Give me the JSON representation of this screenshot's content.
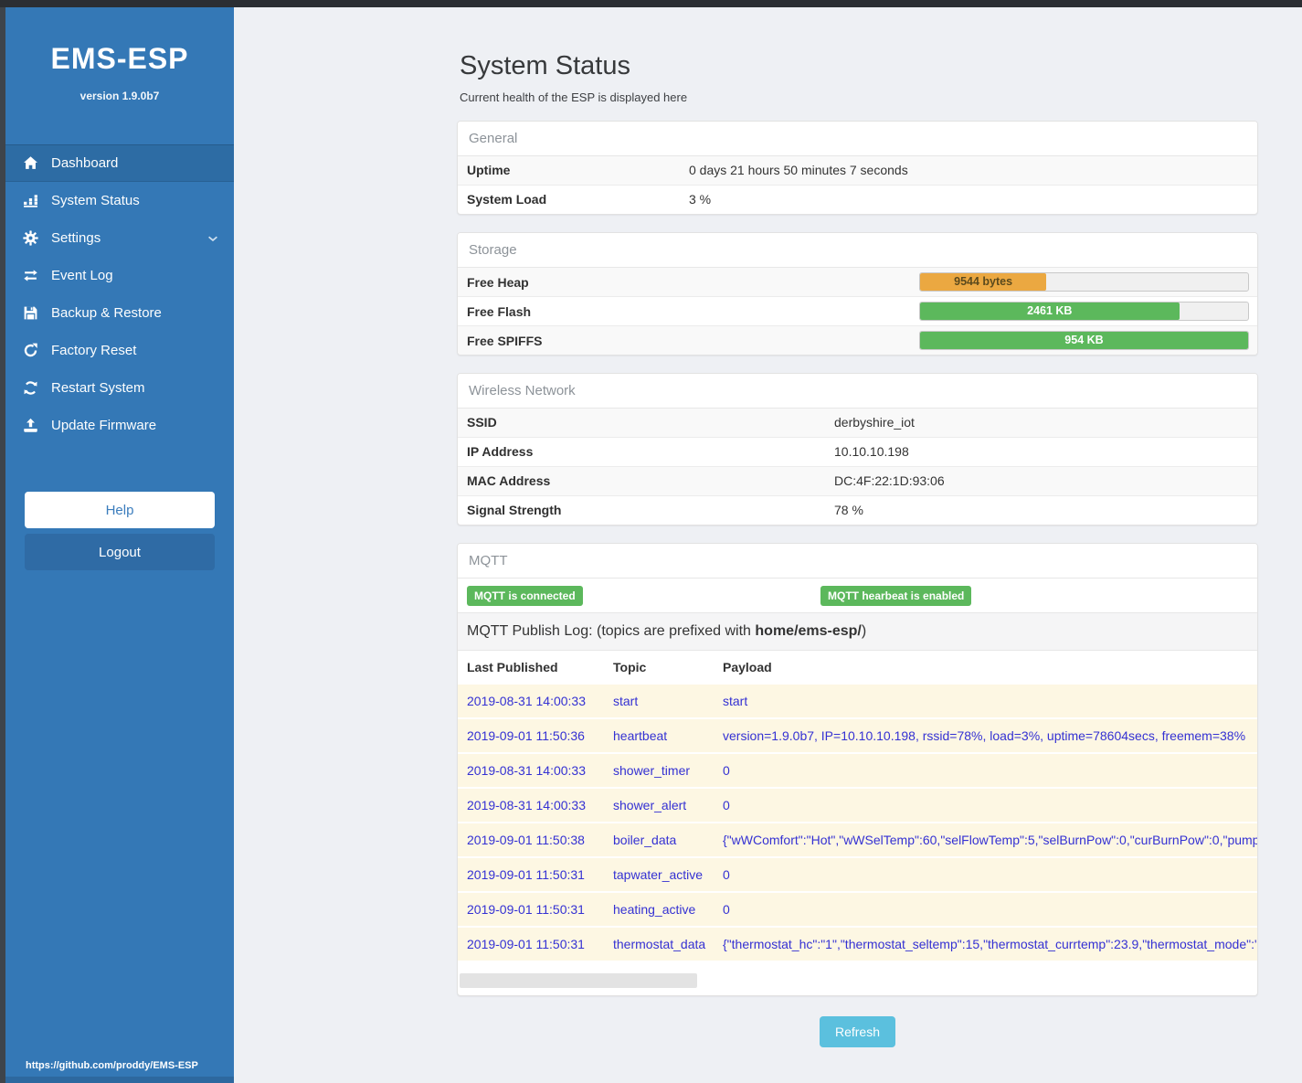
{
  "colors": {
    "sidebar_blue": "#3478b6",
    "active_item_blue": "#2d6ca4",
    "logout_blue": "#2f6ba5",
    "badge_green": "#5cb85c",
    "heap_orange": "#eba841",
    "flash_green": "#5cb85c",
    "refresh_blue": "#5bc0de",
    "log_row_bg": "#fdf7e3",
    "log_text_blue": "#3431d3"
  },
  "sidebar": {
    "title": "EMS-ESP",
    "version": "version 1.9.0b7",
    "items": [
      {
        "id": "dashboard",
        "label": "Dashboard",
        "icon": "home",
        "active": true
      },
      {
        "id": "system-status",
        "label": "System Status",
        "icon": "chart",
        "active": false
      },
      {
        "id": "settings",
        "label": "Settings",
        "icon": "gear",
        "active": false,
        "chevron": true
      },
      {
        "id": "event-log",
        "label": "Event Log",
        "icon": "exchange",
        "active": false
      },
      {
        "id": "backup-restore",
        "label": "Backup & Restore",
        "icon": "save",
        "active": false
      },
      {
        "id": "factory-reset",
        "label": "Factory Reset",
        "icon": "rotate",
        "active": false
      },
      {
        "id": "restart-system",
        "label": "Restart System",
        "icon": "sync",
        "active": false
      },
      {
        "id": "update-firmware",
        "label": "Update Firmware",
        "icon": "upload",
        "active": false
      }
    ],
    "help_label": "Help",
    "logout_label": "Logout",
    "footer_link": "https://github.com/proddy/EMS-ESP"
  },
  "page": {
    "title": "System Status",
    "subtitle": "Current health of the ESP is displayed here",
    "refresh_label": "Refresh"
  },
  "general": {
    "header": "General",
    "rows": [
      {
        "label": "Uptime",
        "value": "0 days 21 hours 50 minutes 7 seconds"
      },
      {
        "label": "System Load",
        "value": "3 %"
      }
    ]
  },
  "storage": {
    "header": "Storage",
    "rows": [
      {
        "label": "Free Heap",
        "value": "9544 bytes",
        "percent": 38.5,
        "color": "#eba841",
        "text_color": "#5b4a1d"
      },
      {
        "label": "Free Flash",
        "value": "2461 KB",
        "percent": 79,
        "color": "#5cb85c",
        "text_color": "#ffffff"
      },
      {
        "label": "Free SPIFFS",
        "value": "954 KB",
        "percent": 100,
        "color": "#5cb85c",
        "text_color": "#ffffff"
      }
    ]
  },
  "wireless": {
    "header": "Wireless Network",
    "rows": [
      {
        "label": "SSID",
        "value": "derbyshire_iot"
      },
      {
        "label": "IP Address",
        "value": "10.10.10.198"
      },
      {
        "label": "MAC Address",
        "value": "DC:4F:22:1D:93:06"
      },
      {
        "label": "Signal Strength",
        "value": "78 %"
      }
    ]
  },
  "mqtt": {
    "header": "MQTT",
    "badges": [
      "MQTT is connected",
      "MQTT hearbeat is enabled"
    ],
    "publish_log": {
      "prefix": "MQTT Publish Log: (topics are prefixed with ",
      "bold": "home/ems-esp/",
      "suffix": ")"
    },
    "table": {
      "headers": [
        "Last Published",
        "Topic",
        "Payload"
      ],
      "rows": [
        {
          "published": "2019-08-31 14:00:33",
          "topic": "start",
          "payload": "start"
        },
        {
          "published": "2019-09-01 11:50:36",
          "topic": "heartbeat",
          "payload": "version=1.9.0b7, IP=10.10.10.198, rssid=78%, load=3%, uptime=78604secs, freemem=38%"
        },
        {
          "published": "2019-08-31 14:00:33",
          "topic": "shower_timer",
          "payload": "0"
        },
        {
          "published": "2019-08-31 14:00:33",
          "topic": "shower_alert",
          "payload": "0"
        },
        {
          "published": "2019-09-01 11:50:38",
          "topic": "boiler_data",
          "payload": "{\"wWComfort\":\"Hot\",\"wWSelTemp\":60,\"selFlowTemp\":5,\"selBurnPow\":0,\"curBurnPow\":0,\"pump"
        },
        {
          "published": "2019-09-01 11:50:31",
          "topic": "tapwater_active",
          "payload": "0"
        },
        {
          "published": "2019-09-01 11:50:31",
          "topic": "heating_active",
          "payload": "0"
        },
        {
          "published": "2019-09-01 11:50:31",
          "topic": "thermostat_data",
          "payload": "{\"thermostat_hc\":\"1\",\"thermostat_seltemp\":15,\"thermostat_currtemp\":23.9,\"thermostat_mode\":\""
        }
      ]
    }
  }
}
